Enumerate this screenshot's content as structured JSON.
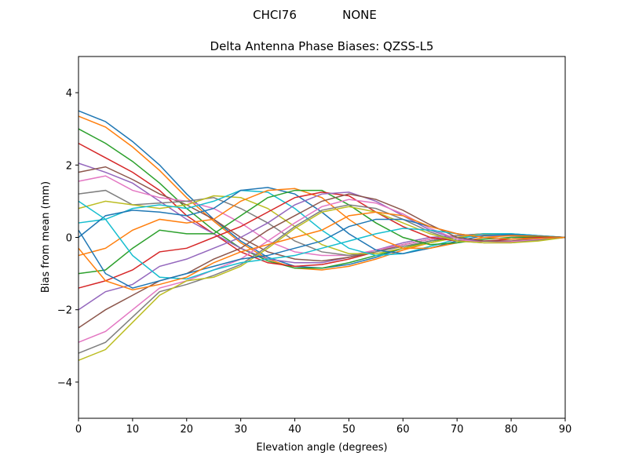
{
  "chart_data": {
    "type": "line",
    "suptitle_left": "CHCI76",
    "suptitle_right": "NONE",
    "title": "Delta Antenna Phase Biases: QZSS-L5",
    "xlabel": "Elevation angle (degrees)",
    "ylabel": "Bias from mean (mm)",
    "xlim": [
      0,
      90
    ],
    "ylim": [
      -5,
      5
    ],
    "xticks": [
      0,
      10,
      20,
      30,
      40,
      50,
      60,
      70,
      80,
      90
    ],
    "yticks": [
      -4,
      -2,
      0,
      2,
      4
    ],
    "ytick_labels": [
      "−4",
      "−2",
      "0",
      "2",
      "4"
    ],
    "grid": false,
    "colors": [
      "#1f77b4",
      "#ff7f0e",
      "#2ca02c",
      "#d62728",
      "#9467bd",
      "#8c564b",
      "#e377c2",
      "#7f7f7f",
      "#bcbd22",
      "#17becf"
    ],
    "x": [
      0,
      5,
      10,
      15,
      20,
      25,
      30,
      35,
      40,
      45,
      50,
      55,
      60,
      65,
      70,
      75,
      80,
      85,
      90
    ],
    "series": [
      {
        "values": [
          3.5,
          3.2,
          2.65,
          2.0,
          1.2,
          0.5,
          -0.1,
          -0.55,
          -0.8,
          -0.85,
          -0.75,
          -0.55,
          -0.3,
          -0.1,
          0.05,
          0.1,
          0.1,
          0.05,
          0
        ]
      },
      {
        "values": [
          3.35,
          3.05,
          2.5,
          1.85,
          1.1,
          0.45,
          -0.15,
          -0.6,
          -0.85,
          -0.9,
          -0.8,
          -0.6,
          -0.35,
          -0.15,
          0.0,
          0.08,
          0.08,
          0.04,
          0
        ]
      },
      {
        "values": [
          3.0,
          2.6,
          2.1,
          1.5,
          0.8,
          0.2,
          -0.3,
          -0.65,
          -0.85,
          -0.85,
          -0.7,
          -0.5,
          -0.3,
          -0.1,
          0.0,
          0.05,
          0.06,
          0.03,
          0
        ]
      },
      {
        "values": [
          2.6,
          2.2,
          1.8,
          1.3,
          0.6,
          0.1,
          -0.4,
          -0.7,
          -0.8,
          -0.75,
          -0.6,
          -0.4,
          -0.2,
          -0.05,
          0.05,
          0.05,
          0.05,
          0.02,
          0
        ]
      },
      {
        "values": [
          2.05,
          1.8,
          1.5,
          1.0,
          0.5,
          0.1,
          -0.3,
          -0.6,
          -0.7,
          -0.7,
          -0.55,
          -0.35,
          -0.15,
          0,
          0.05,
          0.05,
          0.04,
          0.02,
          0
        ]
      },
      {
        "values": [
          1.8,
          1.95,
          1.6,
          1.2,
          0.9,
          0.5,
          0.0,
          -0.4,
          -0.6,
          -0.65,
          -0.55,
          -0.4,
          -0.2,
          -0.05,
          0.05,
          0.05,
          0.04,
          0.02,
          0
        ]
      },
      {
        "values": [
          1.55,
          1.7,
          1.3,
          1.1,
          1.0,
          0.8,
          0.4,
          -0.1,
          -0.4,
          -0.5,
          -0.5,
          -0.35,
          -0.2,
          -0.05,
          0.05,
          0.05,
          0.04,
          0.02,
          0
        ]
      },
      {
        "values": [
          1.2,
          1.3,
          0.9,
          0.95,
          1.0,
          1.1,
          0.8,
          0.4,
          -0.1,
          -0.4,
          -0.5,
          -0.4,
          -0.25,
          -0.1,
          0.05,
          0.1,
          0.05,
          0.02,
          0
        ]
      },
      {
        "values": [
          0.8,
          1.0,
          0.9,
          0.8,
          0.9,
          1.15,
          1.1,
          0.8,
          0.3,
          -0.2,
          -0.45,
          -0.45,
          -0.3,
          -0.15,
          0.0,
          0.1,
          0.08,
          0.03,
          0
        ]
      },
      {
        "values": [
          0.4,
          0.5,
          0.8,
          0.9,
          0.8,
          1.0,
          1.3,
          1.25,
          0.8,
          0.2,
          -0.3,
          -0.5,
          -0.45,
          -0.25,
          -0.05,
          0.1,
          0.1,
          0.05,
          0
        ]
      },
      {
        "values": [
          0.0,
          0.6,
          0.75,
          0.7,
          0.6,
          0.8,
          1.3,
          1.38,
          1.2,
          0.7,
          0.1,
          -0.35,
          -0.45,
          -0.3,
          -0.1,
          0.05,
          0.08,
          0.04,
          0
        ]
      },
      {
        "values": [
          -0.5,
          -0.3,
          0.2,
          0.5,
          0.4,
          0.5,
          1.0,
          1.3,
          1.35,
          1.1,
          0.5,
          0.0,
          -0.3,
          -0.3,
          -0.15,
          0.0,
          0.05,
          0.03,
          0
        ]
      },
      {
        "values": [
          -1.0,
          -0.9,
          -0.3,
          0.2,
          0.1,
          0.1,
          0.6,
          1.1,
          1.3,
          1.3,
          0.9,
          0.4,
          0.0,
          -0.2,
          -0.15,
          -0.05,
          0.0,
          0.01,
          0
        ]
      },
      {
        "values": [
          -1.4,
          -1.2,
          -0.9,
          -0.4,
          -0.3,
          0.0,
          0.3,
          0.7,
          1.1,
          1.25,
          1.15,
          0.7,
          0.3,
          0.0,
          -0.1,
          -0.1,
          -0.05,
          0,
          0
        ]
      },
      {
        "values": [
          -2.0,
          -1.5,
          -1.3,
          -0.8,
          -0.6,
          -0.3,
          0.0,
          0.4,
          0.9,
          1.2,
          1.25,
          1.0,
          0.6,
          0.2,
          -0.05,
          -0.1,
          -0.1,
          -0.05,
          0
        ]
      },
      {
        "values": [
          -2.5,
          -2.0,
          -1.6,
          -1.2,
          -1.0,
          -0.6,
          -0.3,
          0.2,
          0.6,
          1.0,
          1.2,
          1.05,
          0.75,
          0.35,
          0.0,
          -0.1,
          -0.1,
          -0.05,
          0
        ]
      },
      {
        "values": [
          -2.9,
          -2.6,
          -2.0,
          -1.4,
          -1.2,
          -0.9,
          -0.6,
          -0.1,
          0.4,
          0.85,
          1.05,
          0.95,
          0.65,
          0.25,
          -0.05,
          -0.15,
          -0.12,
          -0.06,
          0
        ]
      },
      {
        "values": [
          -3.2,
          -2.9,
          -2.2,
          -1.5,
          -1.3,
          -1.05,
          -0.75,
          -0.25,
          0.3,
          0.75,
          0.9,
          0.8,
          0.5,
          0.15,
          -0.1,
          -0.15,
          -0.15,
          -0.08,
          0
        ]
      },
      {
        "values": [
          -3.4,
          -3.1,
          -2.35,
          -1.6,
          -1.2,
          -1.1,
          -0.8,
          -0.3,
          0.25,
          0.7,
          0.85,
          0.7,
          0.4,
          0.1,
          -0.1,
          -0.15,
          -0.15,
          -0.1,
          0
        ]
      },
      {
        "values": [
          1.0,
          0.5,
          -0.5,
          -1.1,
          -1.15,
          -0.9,
          -0.7,
          -0.6,
          -0.5,
          -0.3,
          -0.1,
          0.1,
          0.25,
          0.2,
          0.1,
          0.0,
          -0.05,
          -0.03,
          0
        ]
      },
      {
        "values": [
          0.2,
          -1.0,
          -1.4,
          -1.2,
          -1.0,
          -0.8,
          -0.6,
          -0.5,
          -0.3,
          -0.1,
          0.3,
          0.5,
          0.5,
          0.3,
          0.1,
          0,
          -0.05,
          -0.03,
          0
        ]
      },
      {
        "values": [
          -0.3,
          -1.2,
          -1.45,
          -1.3,
          -1.1,
          -0.7,
          -0.4,
          -0.2,
          0.0,
          0.2,
          0.6,
          0.7,
          0.6,
          0.3,
          0.1,
          0,
          -0.05,
          -0.03,
          0
        ]
      }
    ]
  }
}
